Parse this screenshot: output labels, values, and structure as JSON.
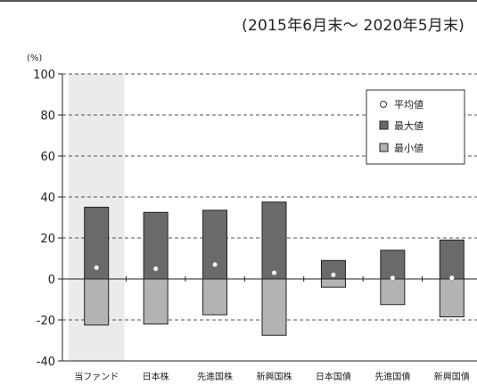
{
  "period_label": "(2015年6月末～ 2020年5月末)",
  "chart_data": {
    "type": "bar",
    "ylabel": "(%)",
    "ylim": [
      -40,
      100
    ],
    "yticks": [
      -40,
      -20,
      0,
      20,
      40,
      60,
      80,
      100
    ],
    "grid": true,
    "grid_style": "dashed",
    "legend_position": "top-right",
    "categories": [
      "当ファンド",
      "日本株",
      "先進国株",
      "新興国株",
      "日本国債",
      "先進国債",
      "新興国債"
    ],
    "highlighted_category": "当ファンド",
    "series": [
      {
        "name": "平均値",
        "values": [
          5.5,
          5.0,
          7.0,
          3.0,
          2.0,
          0.5,
          0.5
        ]
      },
      {
        "name": "最大値",
        "values": [
          35.0,
          32.5,
          33.5,
          37.5,
          9.0,
          14.0,
          19.0
        ]
      },
      {
        "name": "最小値",
        "values": [
          -22.5,
          -22.0,
          -17.5,
          -27.5,
          -4.0,
          -12.5,
          -18.5
        ]
      }
    ],
    "colors": {
      "max": "#6a6a6a",
      "min": "#b3b3b3",
      "highlight": "#ebebeb",
      "mean": "#ffffff"
    }
  }
}
